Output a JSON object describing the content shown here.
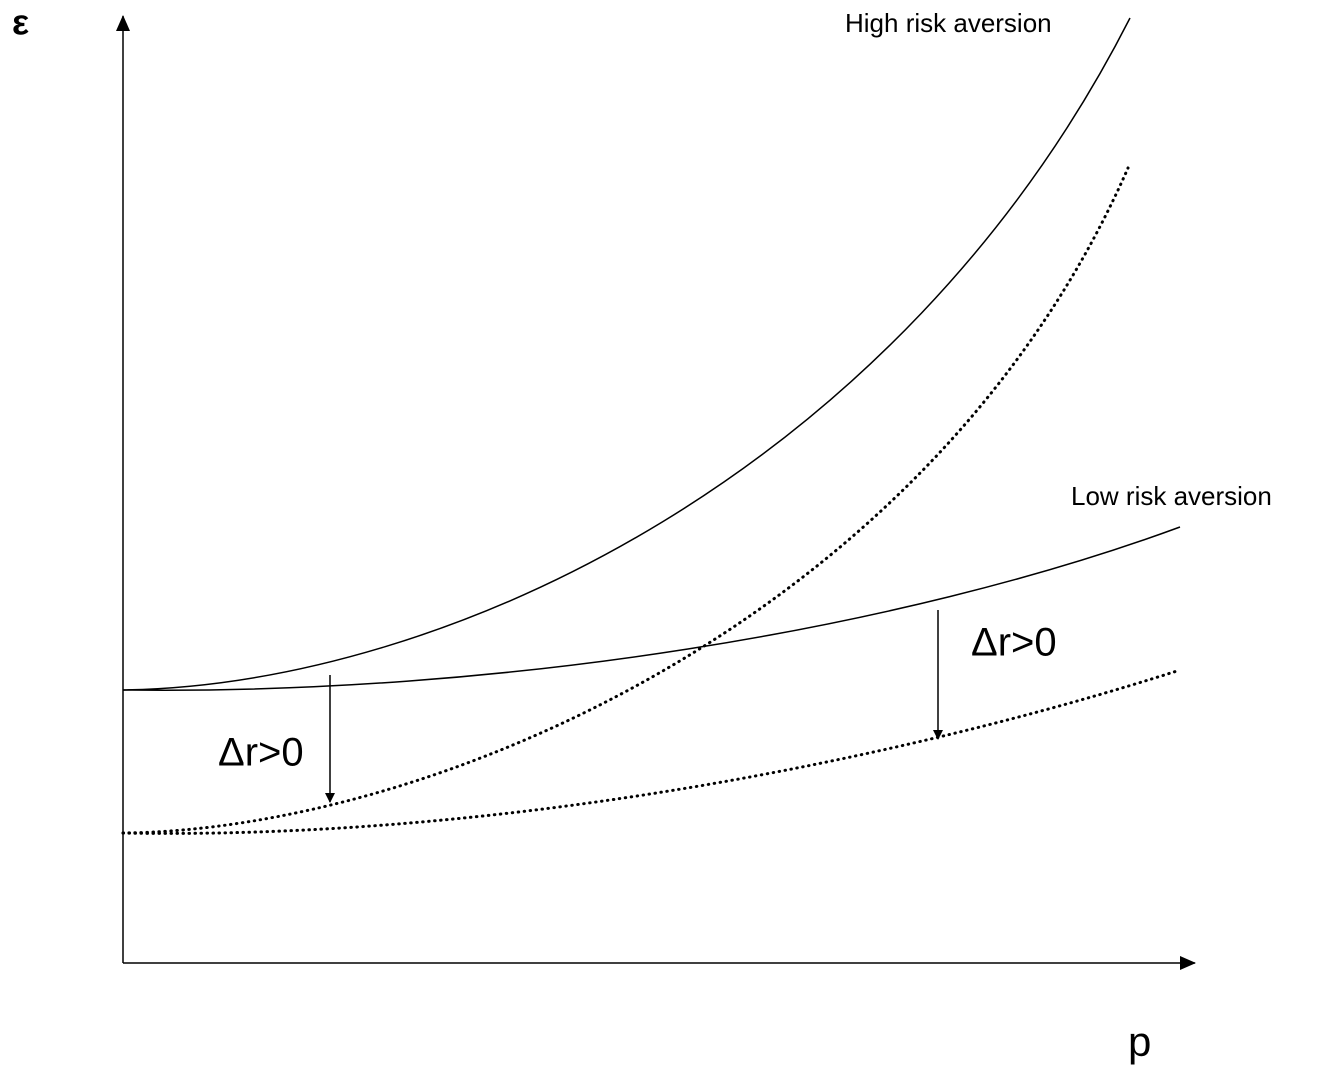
{
  "axes": {
    "y_label": "ε",
    "x_label": "p"
  },
  "curves": {
    "high": "High risk aversion",
    "low": "Low risk aversion"
  },
  "annotations": [
    "Δr>0",
    "Δr>0"
  ]
}
